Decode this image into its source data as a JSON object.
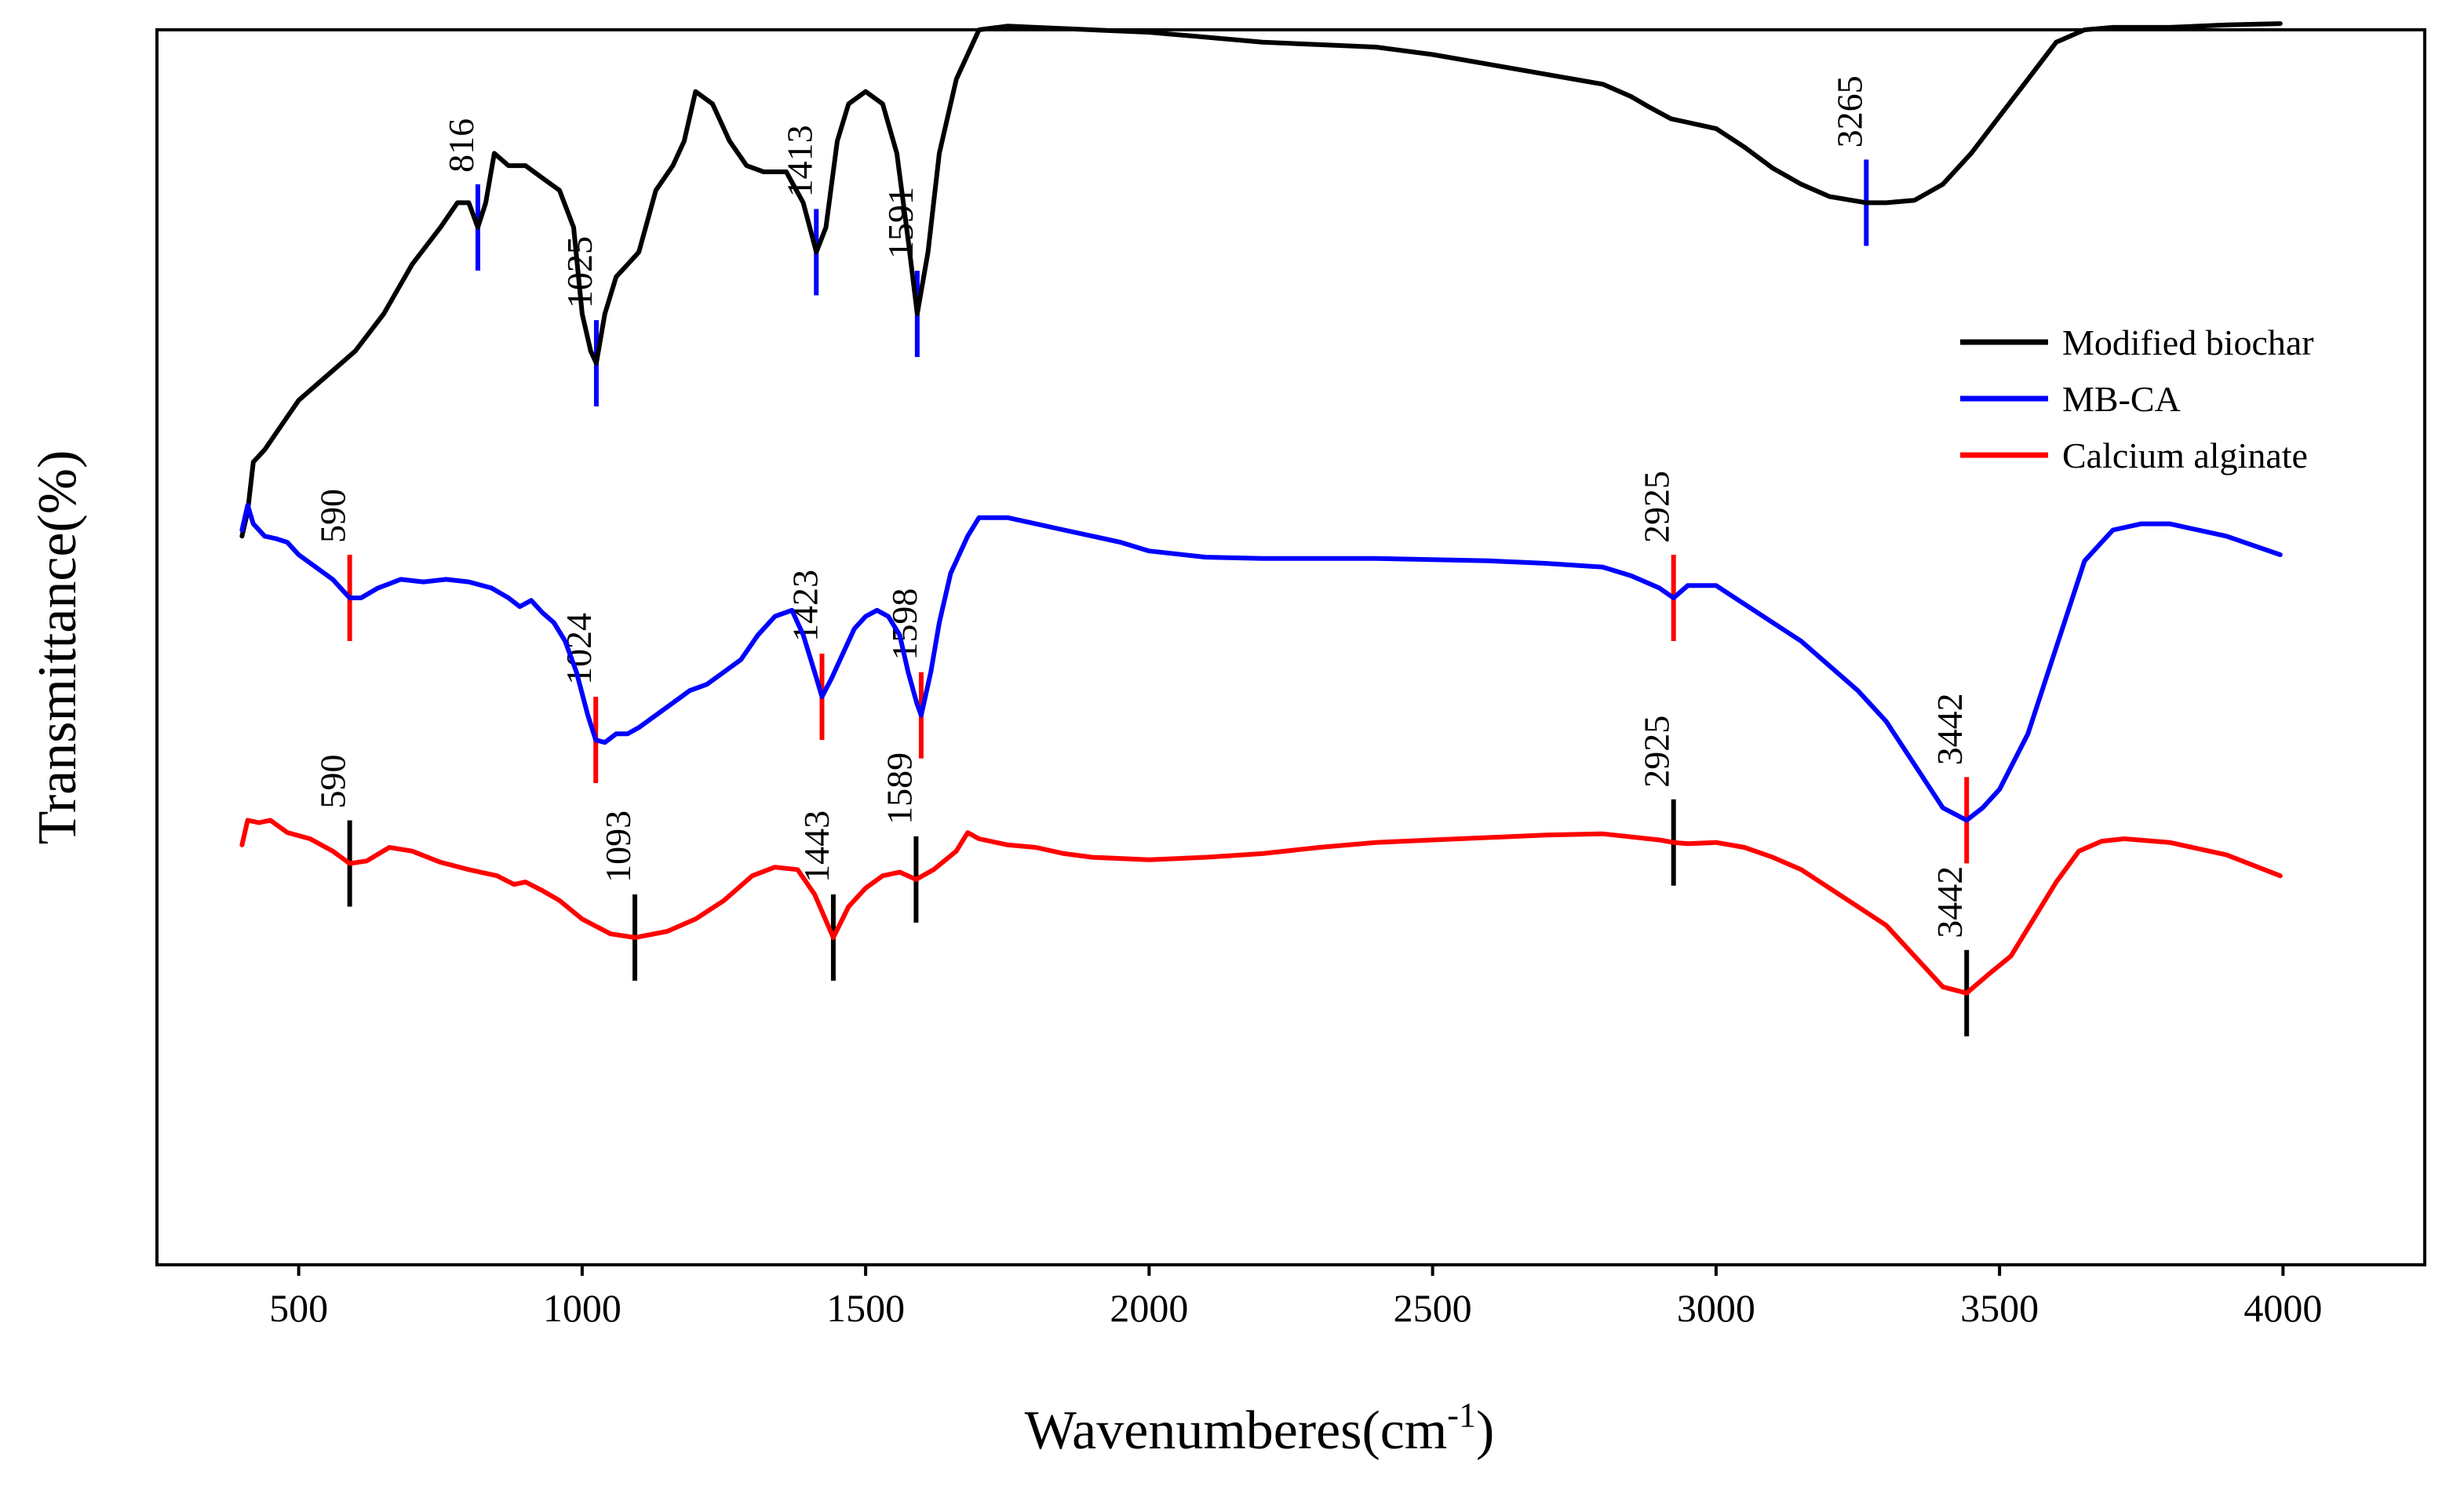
{
  "chart_data": {
    "type": "line",
    "title": "",
    "xlabel": "Wavenumberes(cm",
    "xlabel_superscript": "-1",
    "xlabel_suffix": ")",
    "ylabel": "Transmittance(%)",
    "xlim": [
      250,
      4250
    ],
    "ylim": [
      0,
      100
    ],
    "x_ticks": [
      500,
      1000,
      1500,
      2000,
      2500,
      3000,
      3500,
      4000
    ],
    "y_ticks_shown": false,
    "legend_position": "right-middle",
    "series": [
      {
        "name": "Modified biochar",
        "color": "#000000",
        "points": [
          [
            400,
            59
          ],
          [
            410,
            61
          ],
          [
            420,
            65
          ],
          [
            440,
            66
          ],
          [
            470,
            68
          ],
          [
            500,
            70
          ],
          [
            550,
            72
          ],
          [
            600,
            74
          ],
          [
            650,
            77
          ],
          [
            700,
            81
          ],
          [
            750,
            84
          ],
          [
            780,
            86
          ],
          [
            800,
            86
          ],
          [
            816,
            84
          ],
          [
            830,
            86
          ],
          [
            845,
            90
          ],
          [
            870,
            89
          ],
          [
            900,
            89
          ],
          [
            930,
            88
          ],
          [
            960,
            87
          ],
          [
            985,
            84
          ],
          [
            1000,
            77
          ],
          [
            1015,
            74
          ],
          [
            1025,
            73
          ],
          [
            1040,
            77
          ],
          [
            1060,
            80
          ],
          [
            1080,
            81
          ],
          [
            1100,
            82
          ],
          [
            1130,
            87
          ],
          [
            1160,
            89
          ],
          [
            1180,
            91
          ],
          [
            1200,
            95
          ],
          [
            1230,
            94
          ],
          [
            1260,
            91
          ],
          [
            1290,
            89
          ],
          [
            1320,
            88.5
          ],
          [
            1360,
            88.5
          ],
          [
            1390,
            86
          ],
          [
            1413,
            82
          ],
          [
            1430,
            84
          ],
          [
            1450,
            91
          ],
          [
            1470,
            94
          ],
          [
            1500,
            95
          ],
          [
            1530,
            94
          ],
          [
            1555,
            90
          ],
          [
            1575,
            83
          ],
          [
            1591,
            77
          ],
          [
            1610,
            82
          ],
          [
            1630,
            90
          ],
          [
            1660,
            96
          ],
          [
            1700,
            100
          ],
          [
            1750,
            100.3
          ],
          [
            1800,
            100.2
          ],
          [
            1900,
            100
          ],
          [
            2000,
            99.8
          ],
          [
            2100,
            99.4
          ],
          [
            2200,
            99
          ],
          [
            2300,
            98.8
          ],
          [
            2400,
            98.6
          ],
          [
            2500,
            98
          ],
          [
            2600,
            97.2
          ],
          [
            2700,
            96.4
          ],
          [
            2800,
            95.6
          ],
          [
            2850,
            94.6
          ],
          [
            2880,
            93.8
          ],
          [
            2920,
            92.8
          ],
          [
            2950,
            92.5
          ],
          [
            3000,
            92
          ],
          [
            3050,
            90.5
          ],
          [
            3100,
            88.8
          ],
          [
            3150,
            87.5
          ],
          [
            3200,
            86.5
          ],
          [
            3265,
            86
          ],
          [
            3300,
            86
          ],
          [
            3350,
            86.2
          ],
          [
            3400,
            87.5
          ],
          [
            3450,
            90
          ],
          [
            3500,
            93
          ],
          [
            3550,
            96
          ],
          [
            3600,
            99
          ],
          [
            3650,
            100
          ],
          [
            3700,
            100.2
          ],
          [
            3800,
            100.2
          ],
          [
            3900,
            100.4
          ],
          [
            3995,
            100.5
          ]
        ]
      },
      {
        "name": "MB-CA",
        "color": "#0000ff",
        "points": [
          [
            400,
            59.5
          ],
          [
            410,
            61.5
          ],
          [
            420,
            60
          ],
          [
            440,
            59
          ],
          [
            460,
            58.8
          ],
          [
            480,
            58.5
          ],
          [
            500,
            57.5
          ],
          [
            530,
            56.5
          ],
          [
            560,
            55.5
          ],
          [
            580,
            54.5
          ],
          [
            590,
            54
          ],
          [
            610,
            54
          ],
          [
            640,
            54.8
          ],
          [
            680,
            55.5
          ],
          [
            720,
            55.3
          ],
          [
            760,
            55.5
          ],
          [
            800,
            55.3
          ],
          [
            840,
            54.8
          ],
          [
            870,
            54
          ],
          [
            890,
            53.3
          ],
          [
            910,
            53.8
          ],
          [
            930,
            52.8
          ],
          [
            950,
            52
          ],
          [
            970,
            50.5
          ],
          [
            990,
            48
          ],
          [
            1010,
            44.5
          ],
          [
            1024,
            42.5
          ],
          [
            1040,
            42.3
          ],
          [
            1060,
            43
          ],
          [
            1080,
            43
          ],
          [
            1100,
            43.5
          ],
          [
            1130,
            44.5
          ],
          [
            1160,
            45.5
          ],
          [
            1190,
            46.5
          ],
          [
            1220,
            47
          ],
          [
            1250,
            48
          ],
          [
            1280,
            49
          ],
          [
            1310,
            51
          ],
          [
            1340,
            52.5
          ],
          [
            1370,
            53
          ],
          [
            1390,
            51
          ],
          [
            1410,
            48
          ],
          [
            1423,
            46
          ],
          [
            1440,
            47.5
          ],
          [
            1460,
            49.5
          ],
          [
            1480,
            51.5
          ],
          [
            1500,
            52.5
          ],
          [
            1520,
            53
          ],
          [
            1540,
            52.5
          ],
          [
            1560,
            51
          ],
          [
            1575,
            48
          ],
          [
            1590,
            45.5
          ],
          [
            1598,
            44.5
          ],
          [
            1615,
            48
          ],
          [
            1630,
            52
          ],
          [
            1650,
            56
          ],
          [
            1680,
            59
          ],
          [
            1700,
            60.5
          ],
          [
            1750,
            60.5
          ],
          [
            1800,
            60
          ],
          [
            1850,
            59.5
          ],
          [
            1900,
            59
          ],
          [
            1950,
            58.5
          ],
          [
            2000,
            57.8
          ],
          [
            2100,
            57.3
          ],
          [
            2200,
            57.2
          ],
          [
            2300,
            57.2
          ],
          [
            2400,
            57.2
          ],
          [
            2500,
            57.1
          ],
          [
            2600,
            57
          ],
          [
            2700,
            56.8
          ],
          [
            2800,
            56.5
          ],
          [
            2850,
            55.8
          ],
          [
            2900,
            54.8
          ],
          [
            2925,
            54
          ],
          [
            2950,
            55
          ],
          [
            3000,
            55
          ],
          [
            3050,
            53.5
          ],
          [
            3100,
            52
          ],
          [
            3150,
            50.5
          ],
          [
            3200,
            48.5
          ],
          [
            3250,
            46.5
          ],
          [
            3300,
            44
          ],
          [
            3350,
            40.5
          ],
          [
            3400,
            37
          ],
          [
            3442,
            36
          ],
          [
            3470,
            37
          ],
          [
            3500,
            38.5
          ],
          [
            3550,
            43
          ],
          [
            3600,
            50
          ],
          [
            3650,
            57
          ],
          [
            3700,
            59.5
          ],
          [
            3750,
            60
          ],
          [
            3800,
            60
          ],
          [
            3900,
            59
          ],
          [
            3995,
            57.5
          ]
        ]
      },
      {
        "name": "Calcium alginate",
        "color": "#ff0000",
        "points": [
          [
            400,
            34
          ],
          [
            410,
            36
          ],
          [
            430,
            35.8
          ],
          [
            450,
            36
          ],
          [
            480,
            35
          ],
          [
            520,
            34.5
          ],
          [
            560,
            33.5
          ],
          [
            590,
            32.5
          ],
          [
            620,
            32.7
          ],
          [
            660,
            33.8
          ],
          [
            700,
            33.5
          ],
          [
            750,
            32.6
          ],
          [
            800,
            32
          ],
          [
            850,
            31.5
          ],
          [
            880,
            30.8
          ],
          [
            900,
            31
          ],
          [
            930,
            30.3
          ],
          [
            960,
            29.5
          ],
          [
            1000,
            28
          ],
          [
            1050,
            26.8
          ],
          [
            1093,
            26.5
          ],
          [
            1150,
            27
          ],
          [
            1200,
            28
          ],
          [
            1250,
            29.5
          ],
          [
            1300,
            31.5
          ],
          [
            1340,
            32.2
          ],
          [
            1380,
            32
          ],
          [
            1410,
            30
          ],
          [
            1443,
            26.5
          ],
          [
            1470,
            29
          ],
          [
            1500,
            30.5
          ],
          [
            1530,
            31.5
          ],
          [
            1560,
            31.8
          ],
          [
            1589,
            31.2
          ],
          [
            1620,
            32
          ],
          [
            1660,
            33.5
          ],
          [
            1680,
            35
          ],
          [
            1700,
            34.5
          ],
          [
            1750,
            34
          ],
          [
            1800,
            33.8
          ],
          [
            1850,
            33.3
          ],
          [
            1900,
            33
          ],
          [
            2000,
            32.8
          ],
          [
            2100,
            33
          ],
          [
            2200,
            33.3
          ],
          [
            2300,
            33.8
          ],
          [
            2400,
            34.2
          ],
          [
            2500,
            34.4
          ],
          [
            2600,
            34.6
          ],
          [
            2700,
            34.8
          ],
          [
            2800,
            34.9
          ],
          [
            2900,
            34.4
          ],
          [
            2925,
            34.2
          ],
          [
            2950,
            34.1
          ],
          [
            3000,
            34.2
          ],
          [
            3050,
            33.8
          ],
          [
            3100,
            33
          ],
          [
            3150,
            32
          ],
          [
            3200,
            30.5
          ],
          [
            3250,
            29
          ],
          [
            3300,
            27.5
          ],
          [
            3350,
            25
          ],
          [
            3400,
            22.5
          ],
          [
            3442,
            22
          ],
          [
            3480,
            23.5
          ],
          [
            3520,
            25
          ],
          [
            3560,
            28
          ],
          [
            3600,
            31
          ],
          [
            3640,
            33.5
          ],
          [
            3680,
            34.3
          ],
          [
            3720,
            34.5
          ],
          [
            3800,
            34.2
          ],
          [
            3900,
            33.2
          ],
          [
            3995,
            31.5
          ]
        ]
      }
    ],
    "annotations": [
      {
        "series": 0,
        "label": "816",
        "x": 816,
        "color": "#0000ff"
      },
      {
        "series": 0,
        "label": "1025",
        "x": 1025,
        "color": "#0000ff"
      },
      {
        "series": 0,
        "label": "1413",
        "x": 1413,
        "color": "#0000ff"
      },
      {
        "series": 0,
        "label": "1591",
        "x": 1591,
        "color": "#0000ff"
      },
      {
        "series": 0,
        "label": "3265",
        "x": 3265,
        "color": "#0000ff"
      },
      {
        "series": 1,
        "label": "590",
        "x": 590,
        "color": "#ff0000"
      },
      {
        "series": 1,
        "label": "1024",
        "x": 1024,
        "color": "#ff0000"
      },
      {
        "series": 1,
        "label": "1423",
        "x": 1423,
        "color": "#ff0000"
      },
      {
        "series": 1,
        "label": "1598",
        "x": 1598,
        "color": "#ff0000"
      },
      {
        "series": 1,
        "label": "2925",
        "x": 2925,
        "color": "#ff0000"
      },
      {
        "series": 1,
        "label": "3442",
        "x": 3442,
        "color": "#ff0000"
      },
      {
        "series": 2,
        "label": "590",
        "x": 590,
        "color": "#000000"
      },
      {
        "series": 2,
        "label": "1093",
        "x": 1093,
        "color": "#000000"
      },
      {
        "series": 2,
        "label": "1443",
        "x": 1443,
        "color": "#000000"
      },
      {
        "series": 2,
        "label": "1589",
        "x": 1589,
        "color": "#000000"
      },
      {
        "series": 2,
        "label": "2925",
        "x": 2925,
        "color": "#000000"
      },
      {
        "series": 2,
        "label": "3442",
        "x": 3442,
        "color": "#000000"
      }
    ]
  }
}
